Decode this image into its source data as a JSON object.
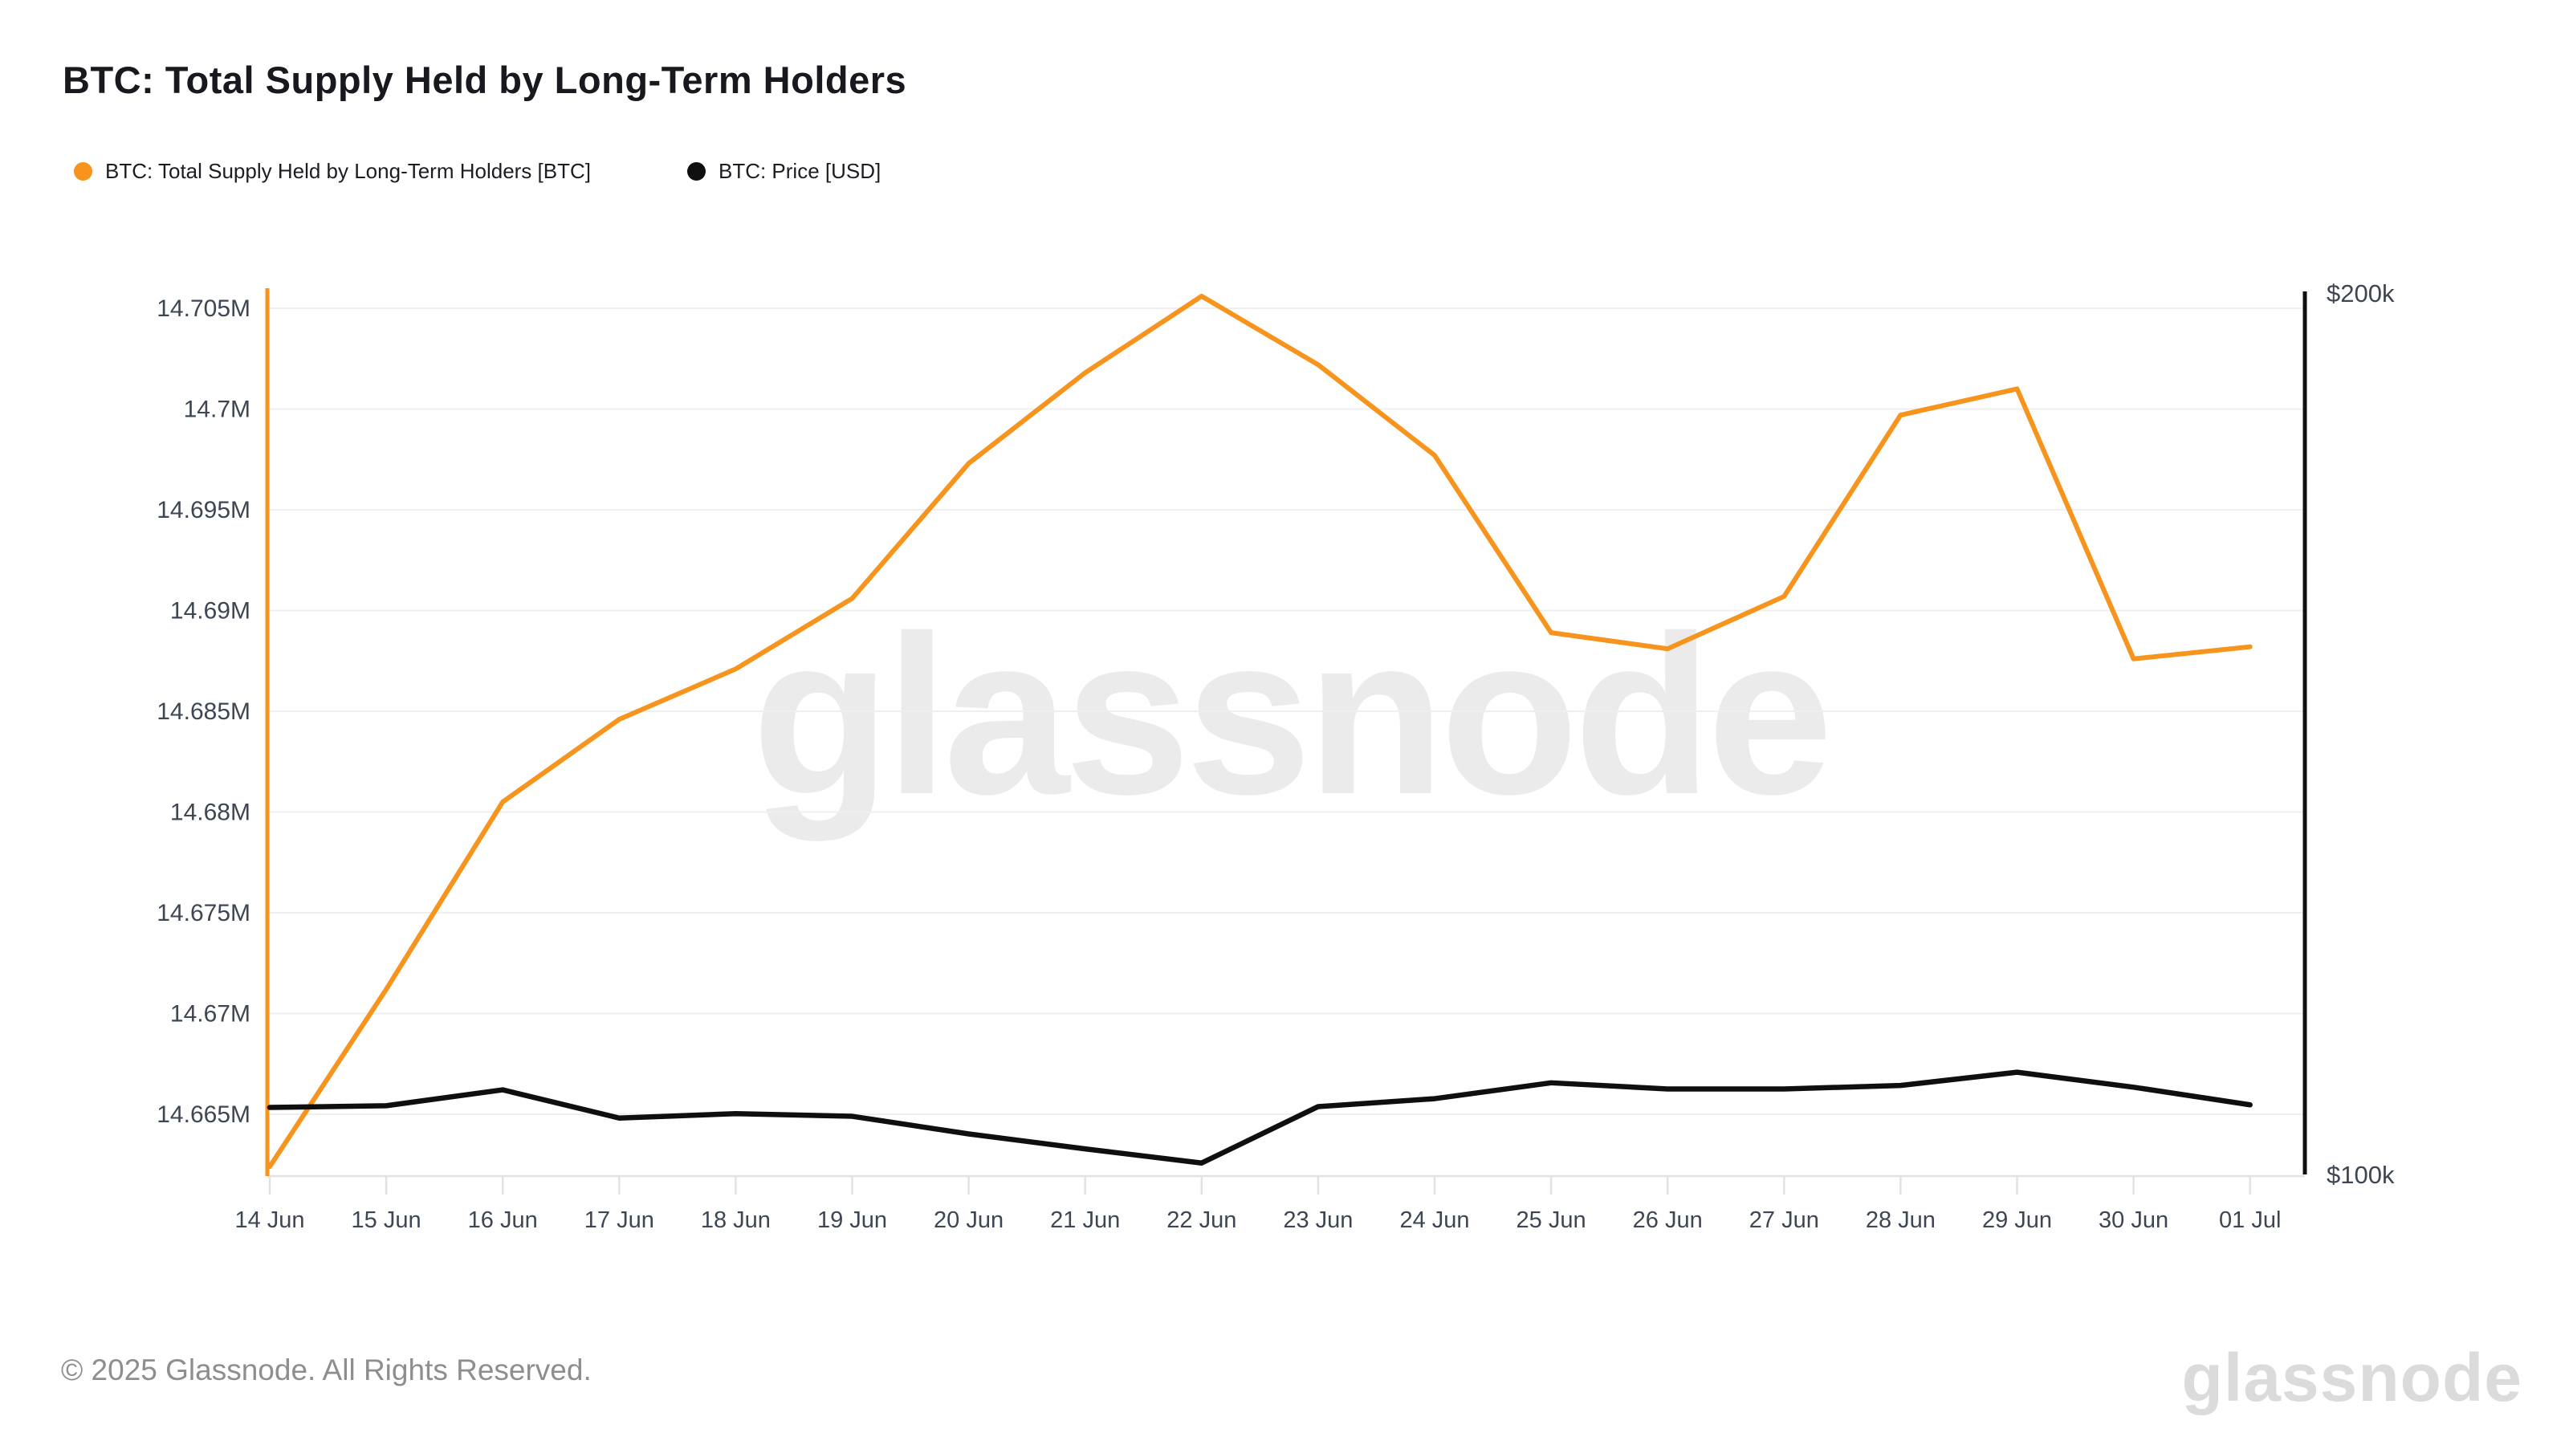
{
  "header": {
    "title": "BTC: Total Supply Held by Long-Term Holders"
  },
  "legend": [
    {
      "label": "BTC: Total Supply Held by Long-Term Holders [BTC]",
      "color": "#f7941d"
    },
    {
      "label": "BTC: Price [USD]",
      "color": "#0f0f0f"
    }
  ],
  "watermark": "glassnode",
  "footer": {
    "copyright": "© 2025 Glassnode. All Rights Reserved.",
    "brand": "glassnode"
  },
  "chart_data": {
    "type": "line",
    "title": "BTC: Total Supply Held by Long-Term Holders",
    "categories": [
      "14 Jun",
      "15 Jun",
      "16 Jun",
      "17 Jun",
      "18 Jun",
      "19 Jun",
      "20 Jun",
      "21 Jun",
      "22 Jun",
      "23 Jun",
      "24 Jun",
      "25 Jun",
      "26 Jun",
      "27 Jun",
      "28 Jun",
      "29 Jun",
      "30 Jun",
      "01 Jul"
    ],
    "series": [
      {
        "name": "BTC: Total Supply Held by Long-Term Holders [BTC]",
        "axis": "left",
        "color": "#f7941d",
        "unit": "M BTC",
        "values": [
          14.6624,
          14.6712,
          14.6805,
          14.6846,
          14.6871,
          14.6906,
          14.6973,
          14.7018,
          14.7056,
          14.7022,
          14.6977,
          14.6889,
          14.6881,
          14.6907,
          14.6997,
          14.701,
          14.6876,
          14.6882
        ]
      },
      {
        "name": "BTC: Price [USD]",
        "axis": "right",
        "color": "#0f0f0f",
        "unit": "USD (thousands)",
        "values": [
          107.6,
          107.8,
          109.6,
          106.4,
          106.9,
          106.6,
          104.6,
          102.9,
          101.3,
          107.7,
          108.6,
          110.4,
          109.7,
          109.7,
          110.1,
          111.6,
          109.9,
          107.9
        ]
      }
    ],
    "y_left": {
      "tick_labels": [
        "14.705M",
        "14.7M",
        "14.695M",
        "14.69M",
        "14.685M",
        "14.68M",
        "14.675M",
        "14.67M",
        "14.665M"
      ],
      "tick_values": [
        14.705,
        14.7,
        14.695,
        14.69,
        14.685,
        14.68,
        14.675,
        14.67,
        14.665
      ],
      "axis_color": "#f7941d"
    },
    "y_right": {
      "tick_labels": [
        "$200k",
        "$100k"
      ],
      "tick_values": [
        200,
        100
      ],
      "axis_color": "#0f0f0f"
    },
    "grid": "horizontal",
    "legend_position": "top-left",
    "colors": {
      "gridline": "#efefef",
      "axis_tick": "#e2e2e2",
      "tick_text": "#3e4654",
      "watermark": "#ebebeb"
    }
  }
}
